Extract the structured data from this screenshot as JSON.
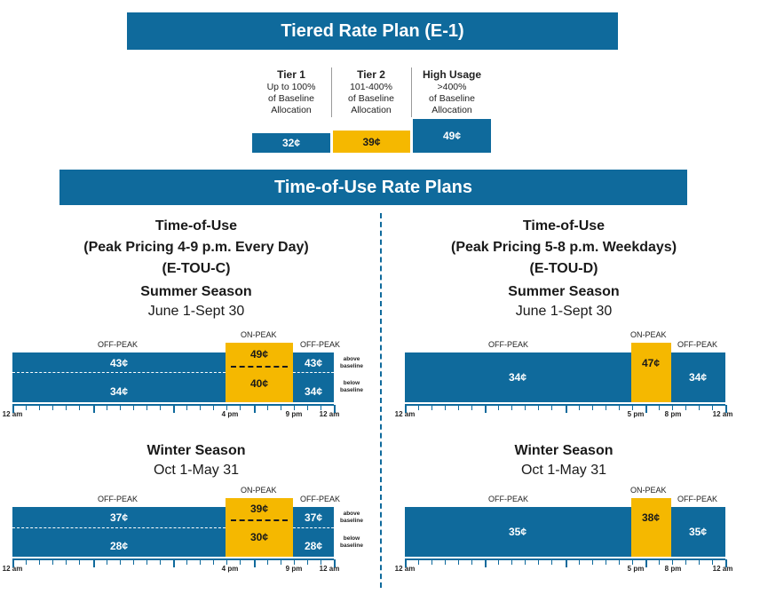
{
  "tiered": {
    "title": "Tiered Rate Plan (E-1)",
    "tiers": [
      {
        "name": "Tier 1",
        "desc": [
          "Up to 100%",
          "of Baseline",
          "Allocation"
        ],
        "price": "32¢",
        "color": "#0f6a9c"
      },
      {
        "name": "Tier 2",
        "desc": [
          "101-400%",
          "of Baseline",
          "Allocation"
        ],
        "price": "39¢",
        "color": "#f5b800"
      },
      {
        "name": "High Usage",
        "desc": [
          ">400%",
          "of Baseline",
          "Allocation"
        ],
        "price": "49¢",
        "color": "#0f6a9c"
      }
    ]
  },
  "tou": {
    "title": "Time-of-Use Rate Plans",
    "plans": [
      {
        "title": [
          "Time-of-Use",
          "(Peak Pricing 4-9 p.m. Every Day)",
          "(E-TOU-C)"
        ],
        "charts": [
          {
            "season": "Summer Season",
            "dates": "June 1-Sept 30",
            "off_label": "OFF-PEAK",
            "on_label": "ON-PEAK",
            "off_above": "43¢",
            "off_below": "34¢",
            "on_above": "49¢",
            "on_below": "40¢",
            "note_above": [
              "above",
              "baseline"
            ],
            "note_below": [
              "below",
              "baseline"
            ],
            "ticks": [
              "12 am",
              "4 pm",
              "9 pm",
              "12 am"
            ]
          },
          {
            "season": "Winter Season",
            "dates": "Oct 1-May 31",
            "off_label": "OFF-PEAK",
            "on_label": "ON-PEAK",
            "off_above": "37¢",
            "off_below": "28¢",
            "on_above": "39¢",
            "on_below": "30¢",
            "note_above": [
              "above",
              "baseline"
            ],
            "note_below": [
              "below",
              "baseline"
            ],
            "ticks": [
              "12 am",
              "4 pm",
              "9 pm",
              "12 am"
            ]
          }
        ]
      },
      {
        "title": [
          "Time-of-Use",
          "(Peak Pricing 5-8 p.m. Weekdays)",
          "(E-TOU-D)"
        ],
        "charts": [
          {
            "season": "Summer Season",
            "dates": "June 1-Sept 30",
            "off_label": "OFF-PEAK",
            "on_label": "ON-PEAK",
            "off": "34¢",
            "on": "47¢",
            "ticks": [
              "12 am",
              "5 pm",
              "8 pm",
              "12 am"
            ]
          },
          {
            "season": "Winter Season",
            "dates": "Oct 1-May 31",
            "off_label": "OFF-PEAK",
            "on_label": "ON-PEAK",
            "off": "35¢",
            "on": "38¢",
            "ticks": [
              "12 am",
              "5 pm",
              "8 pm",
              "12 am"
            ]
          }
        ]
      }
    ]
  },
  "colors": {
    "blue": "#0f6a9c",
    "gold": "#f5b800"
  }
}
